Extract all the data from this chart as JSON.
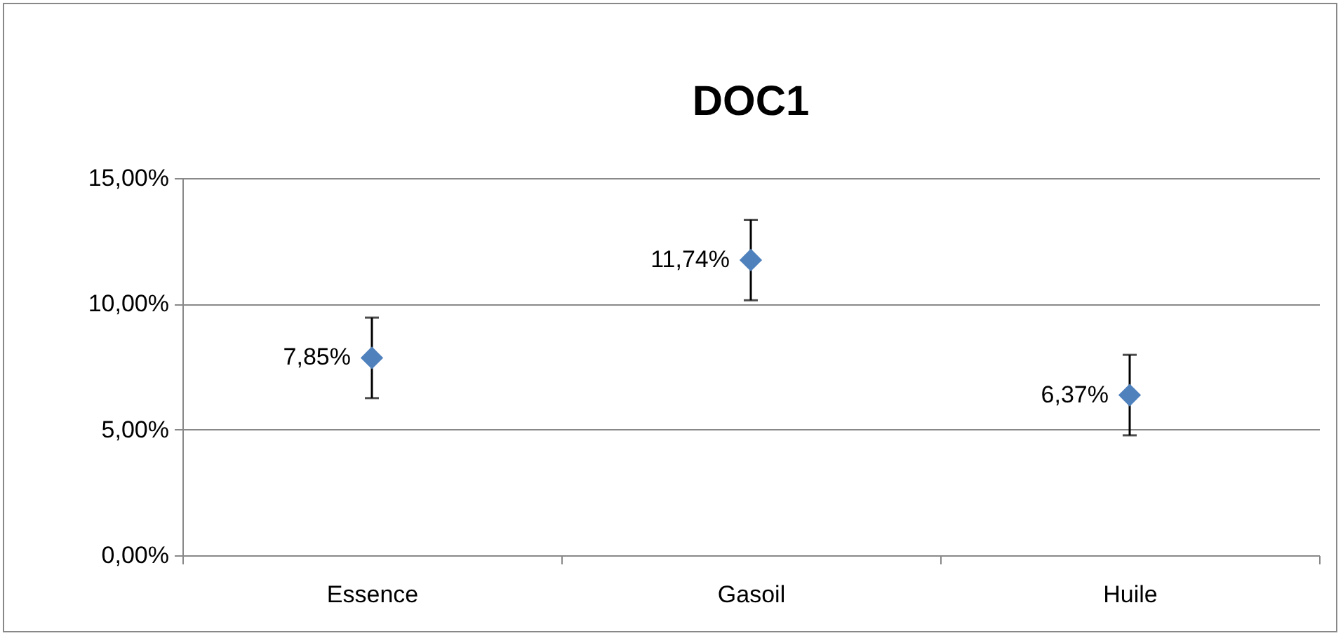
{
  "chart_data": {
    "type": "scatter",
    "title": "DOC1",
    "categories": [
      "Essence",
      "Gasoil",
      "Huile"
    ],
    "series": [
      {
        "color": "#4f81bd",
        "values": [
          7.85,
          11.74,
          6.37
        ],
        "errors": [
          1.6,
          1.6,
          1.6
        ],
        "value_labels": [
          "7,85%",
          "11,74%",
          "6,37%"
        ]
      }
    ],
    "ylim": [
      0,
      15
    ],
    "yticks": [
      {
        "value": 0,
        "label": "0,00%"
      },
      {
        "value": 5,
        "label": "5,00%"
      },
      {
        "value": 10,
        "label": "10,00%"
      },
      {
        "value": 15,
        "label": "15,00%"
      }
    ],
    "grid": "y",
    "marker": "diamond"
  }
}
